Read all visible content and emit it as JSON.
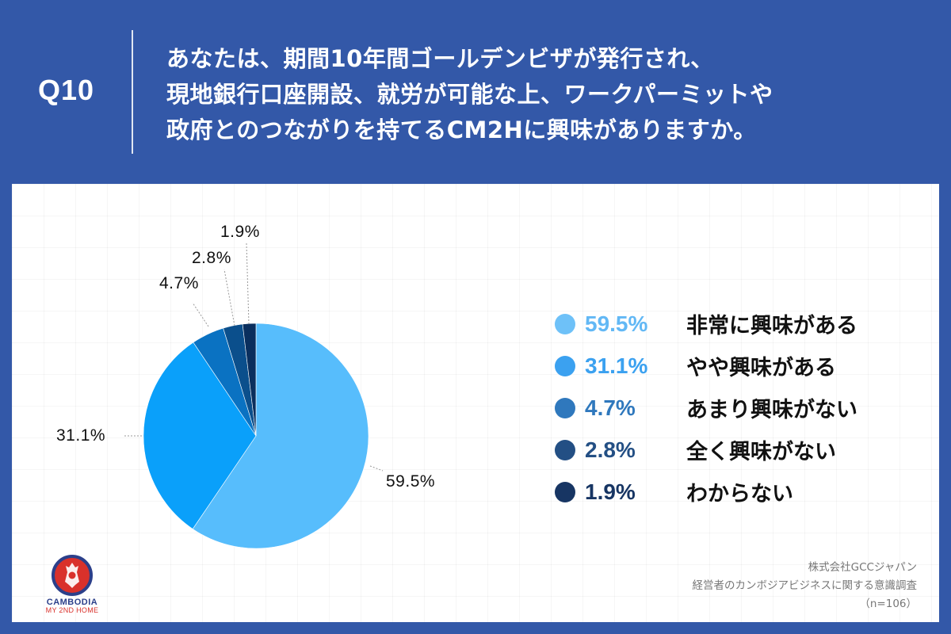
{
  "header": {
    "question_number": "Q10",
    "question_lines": [
      "あなたは、期間10年間ゴールデンビザが発行され、",
      "現地銀行口座開設、就労が可能な上、ワークパーミットや",
      "政府とのつながりを持てるCM2Hに興味がありますか。"
    ]
  },
  "pie_labels": {
    "very": "59.5%",
    "somewhat": "31.1%",
    "not_much": "4.7%",
    "not_at_all": "2.8%",
    "dont_know": "1.9%"
  },
  "legend": [
    {
      "pct": "59.5%",
      "label": "非常に興味がある",
      "color": "#5bbcf8",
      "text_color": "#62b8f5"
    },
    {
      "pct": "31.1%",
      "label": "やや興味がある",
      "color": "#3ba1f0",
      "text_color": "#3ba1f0"
    },
    {
      "pct": "4.7%",
      "label": "あまり興味がない",
      "color": "#2f78bd",
      "text_color": "#2f78bd"
    },
    {
      "pct": "2.8%",
      "label": "全く興味がない",
      "color": "#234f84",
      "text_color": "#234f84"
    },
    {
      "pct": "1.9%",
      "label": "わからない",
      "color": "#173563",
      "text_color": "#173563"
    }
  ],
  "source": {
    "company": "株式会社GCCジャパン",
    "survey": "経営者のカンボジアビジネスに関する意識調査",
    "sample": "（n=106）"
  },
  "logo": {
    "line1": "CAMBODIA",
    "line2": "MY 2ND HOME"
  },
  "colors": {
    "background": "#3358a8",
    "slice_very": "#57bdfc",
    "slice_somewhat": "#0aa0fa",
    "slice_not_much": "#0a72c2",
    "slice_not_at_all": "#0b4f8c",
    "slice_dont_know": "#0a2f5e"
  },
  "chart_data": {
    "type": "pie",
    "title": "Q10 あなたは、期間10年間ゴールデンビザが発行され、現地銀行口座開設、就労が可能な上、ワークパーミットや政府とのつながりを持てるCM2Hに興味がありますか。",
    "categories": [
      "非常に興味がある",
      "やや興味がある",
      "あまり興味がない",
      "全く興味がない",
      "わからない"
    ],
    "values": [
      59.5,
      31.1,
      4.7,
      2.8,
      1.9
    ],
    "unit": "%",
    "colors": [
      "#57bdfc",
      "#0aa0fa",
      "#0a72c2",
      "#0b4f8c",
      "#0a2f5e"
    ],
    "start_angle": "12 o'clock, clockwise",
    "legend_position": "right",
    "note": "株式会社GCCジャパン 経営者のカンボジアビジネスに関する意識調査 (n=106)"
  }
}
